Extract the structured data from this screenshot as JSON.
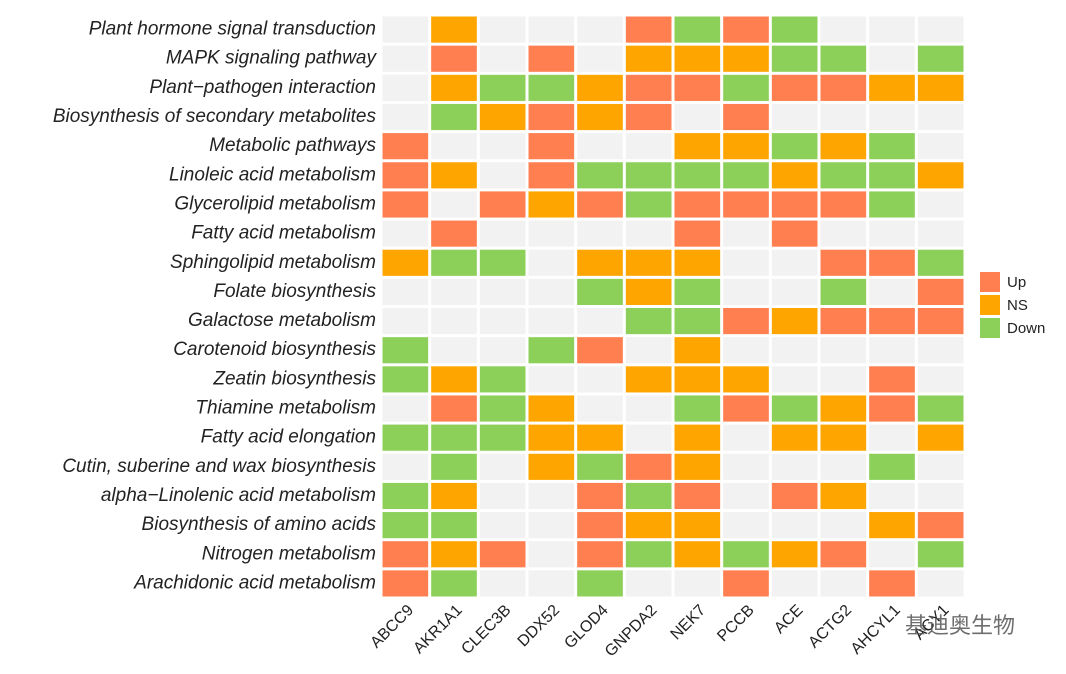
{
  "chart_data": {
    "type": "heatmap",
    "rows": [
      "Plant hormone signal transduction",
      "MAPK signaling pathway",
      "Plant−pathogen interaction",
      "Biosynthesis of secondary metabolites",
      "Metabolic pathways",
      "Linoleic acid metabolism",
      "Glycerolipid metabolism",
      "Fatty acid metabolism",
      "Sphingolipid metabolism",
      "Folate biosynthesis",
      "Galactose metabolism",
      "Carotenoid biosynthesis",
      "Zeatin biosynthesis",
      "Thiamine metabolism",
      "Fatty acid elongation",
      "Cutin, suberine and wax biosynthesis",
      "alpha−Linolenic acid metabolism",
      "Biosynthesis of amino acids",
      "Nitrogen metabolism",
      "Arachidonic acid metabolism"
    ],
    "columns": [
      "ABCC9",
      "AKR1A1",
      "CLEC3B",
      "DDX52",
      "GLOD4",
      "GNPDA2",
      "NEK7",
      "PCCB",
      "ACE",
      "ACTG2",
      "AHCYL1",
      "ACY1"
    ],
    "legend": [
      {
        "name": "Up",
        "color": "#ff7f50"
      },
      {
        "name": "NS",
        "color": "#ffa500"
      },
      {
        "name": "Down",
        "color": "#8cd05a"
      }
    ],
    "empty_color": "#f2f2f2",
    "values": [
      [
        null,
        "NS",
        null,
        null,
        null,
        "Up",
        "Down",
        "Up",
        "Down",
        null,
        null,
        null
      ],
      [
        null,
        "Up",
        null,
        "Up",
        null,
        "NS",
        "NS",
        "NS",
        "Down",
        "Down",
        null,
        "Down"
      ],
      [
        null,
        "NS",
        "Down",
        "Down",
        "NS",
        "Up",
        "Up",
        "Down",
        "Up",
        "Up",
        "NS",
        "NS"
      ],
      [
        null,
        "Down",
        "NS",
        "Up",
        "NS",
        "Up",
        null,
        "Up",
        null,
        null,
        null,
        null
      ],
      [
        "Up",
        null,
        null,
        "Up",
        null,
        null,
        "NS",
        "NS",
        "Down",
        "NS",
        "Down",
        null
      ],
      [
        "Up",
        "NS",
        null,
        "Up",
        "Down",
        "Down",
        "Down",
        "Down",
        "NS",
        "Down",
        "Down",
        "NS"
      ],
      [
        "Up",
        null,
        "Up",
        "NS",
        "Up",
        "Down",
        "Up",
        "Up",
        "Up",
        "Up",
        "Down",
        null
      ],
      [
        null,
        "Up",
        null,
        null,
        null,
        null,
        "Up",
        null,
        "Up",
        null,
        null,
        null
      ],
      [
        "NS",
        "Down",
        "Down",
        null,
        "NS",
        "NS",
        "NS",
        null,
        null,
        "Up",
        "Up",
        "Down"
      ],
      [
        null,
        null,
        null,
        null,
        "Down",
        "NS",
        "Down",
        null,
        null,
        "Down",
        null,
        "Up"
      ],
      [
        null,
        null,
        null,
        null,
        null,
        "Down",
        "Down",
        "Up",
        "NS",
        "Up",
        "Up",
        "Up"
      ],
      [
        "Down",
        null,
        null,
        "Down",
        "Up",
        null,
        "NS",
        null,
        null,
        null,
        null,
        null
      ],
      [
        "Down",
        "NS",
        "Down",
        null,
        null,
        "NS",
        "NS",
        "NS",
        null,
        null,
        "Up",
        null
      ],
      [
        null,
        "Up",
        "Down",
        "NS",
        null,
        null,
        "Down",
        "Up",
        "Down",
        "NS",
        "Up",
        "Down"
      ],
      [
        "Down",
        "Down",
        "Down",
        "NS",
        "NS",
        null,
        "NS",
        null,
        "NS",
        "NS",
        null,
        "NS"
      ],
      [
        null,
        "Down",
        null,
        "NS",
        "Down",
        "Up",
        "NS",
        null,
        null,
        null,
        "Down",
        null
      ],
      [
        "Down",
        "NS",
        null,
        null,
        "Up",
        "Down",
        "Up",
        null,
        "Up",
        "NS",
        null,
        null
      ],
      [
        "Down",
        "Down",
        null,
        null,
        "Up",
        "NS",
        "NS",
        null,
        null,
        null,
        "NS",
        "Up"
      ],
      [
        "Up",
        "NS",
        "Up",
        null,
        "Up",
        "Down",
        "NS",
        "Down",
        "NS",
        "Up",
        null,
        "Down"
      ],
      [
        "Up",
        "Down",
        null,
        null,
        "Down",
        null,
        null,
        "Up",
        null,
        null,
        "Up",
        null
      ]
    ],
    "watermark": "基迪奥生物"
  }
}
